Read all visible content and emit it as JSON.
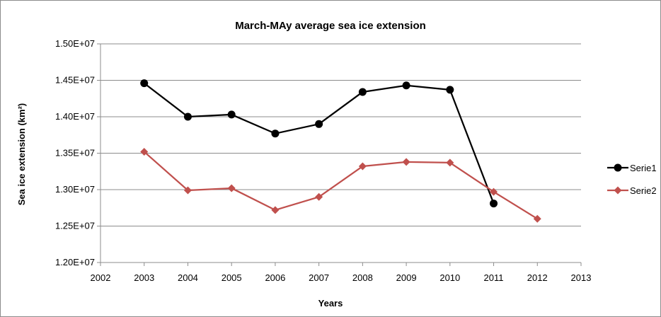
{
  "chart_data": {
    "type": "line",
    "title": "March-MAy average sea ice extension",
    "xlabel": "Years",
    "ylabel": "Sea ice extension (km²)",
    "xlim": [
      2002,
      2013
    ],
    "ylim": [
      12000000,
      15000000
    ],
    "x_ticks": [
      "2002",
      "2003",
      "2004",
      "2005",
      "2006",
      "2007",
      "2008",
      "2009",
      "2010",
      "2011",
      "2012",
      "2013"
    ],
    "y_ticks": [
      "1.20E+07",
      "1.25E+07",
      "1.30E+07",
      "1.35E+07",
      "1.40E+07",
      "1.45E+07",
      "1.50E+07"
    ],
    "grid": "horizontal",
    "legend_position": "right",
    "series": [
      {
        "name": "Serie1",
        "color": "#000000",
        "marker": "circle",
        "x": [
          2003,
          2004,
          2005,
          2006,
          2007,
          2008,
          2009,
          2010,
          2011
        ],
        "values": [
          14460000,
          14000000,
          14030000,
          13770000,
          13900000,
          14340000,
          14430000,
          14370000,
          12810000
        ]
      },
      {
        "name": "Serie2",
        "color": "#c0504d",
        "marker": "diamond",
        "x": [
          2003,
          2004,
          2005,
          2006,
          2007,
          2008,
          2009,
          2010,
          2011,
          2012
        ],
        "values": [
          13520000,
          12990000,
          13020000,
          12720000,
          12900000,
          13320000,
          13380000,
          13370000,
          12970000,
          12600000
        ]
      }
    ]
  }
}
